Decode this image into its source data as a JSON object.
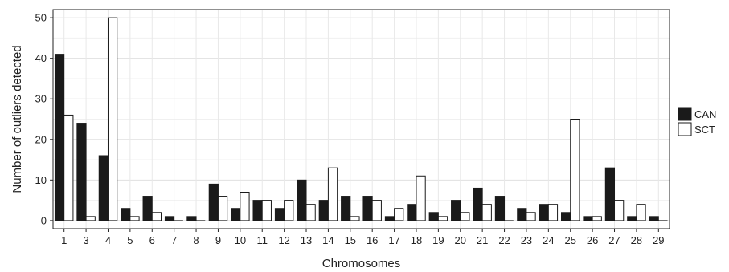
{
  "chart_data": {
    "type": "bar",
    "title": "",
    "xlabel": "Chromosomes",
    "ylabel": "Number of outliers detected",
    "ylim": [
      -2,
      52
    ],
    "yticks": [
      0,
      10,
      20,
      30,
      40,
      50
    ],
    "grid": true,
    "legend_position": "right",
    "categories": [
      "1",
      "3",
      "4",
      "5",
      "6",
      "7",
      "8",
      "9",
      "10",
      "11",
      "12",
      "13",
      "14",
      "15",
      "16",
      "17",
      "18",
      "19",
      "20",
      "21",
      "22",
      "23",
      "24",
      "25",
      "26",
      "27",
      "28",
      "29"
    ],
    "series": [
      {
        "name": "CAN",
        "color": "#1a1a1a",
        "values": [
          41,
          24,
          16,
          3,
          6,
          1,
          1,
          9,
          3,
          5,
          3,
          10,
          5,
          6,
          6,
          1,
          4,
          2,
          5,
          8,
          6,
          3,
          4,
          2,
          1,
          13,
          1,
          1
        ]
      },
      {
        "name": "SCT",
        "color": "#ffffff",
        "values": [
          26,
          1,
          50,
          1,
          2,
          0,
          0,
          6,
          7,
          5,
          5,
          4,
          13,
          1,
          5,
          3,
          11,
          1,
          2,
          4,
          0,
          2,
          4,
          25,
          1,
          5,
          4,
          0
        ]
      }
    ]
  }
}
